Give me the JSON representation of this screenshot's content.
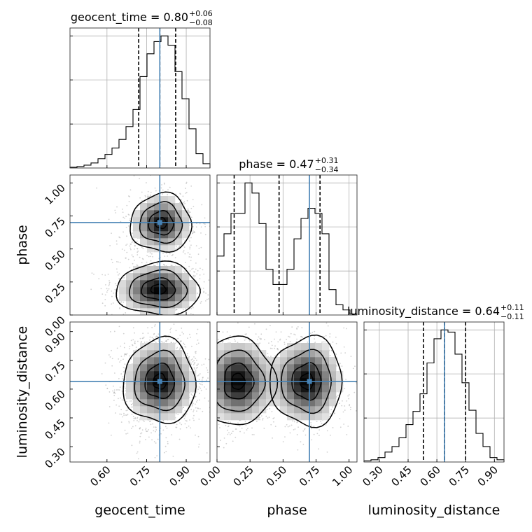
{
  "chart_data": {
    "type": "corner",
    "parameters": [
      {
        "name": "geocent_time",
        "title": {
          "prefix": "geocent_time = ",
          "median": "0.80",
          "plus": "+0.06",
          "minus": "−0.08"
        },
        "range": [
          0.46,
          0.99
        ],
        "median": 0.8,
        "q_low": 0.72,
        "q_high": 0.86,
        "truth": 0.8,
        "ticks": [
          0.6,
          0.75,
          0.9
        ],
        "tick_labels": [
          "0.60",
          "0.75",
          "0.90"
        ],
        "hist_bins": [
          0.46,
          0.4865,
          0.513,
          0.5395,
          0.566,
          0.5925,
          0.619,
          0.6455,
          0.672,
          0.6985,
          0.725,
          0.7515,
          0.778,
          0.8045,
          0.831,
          0.8575,
          0.884,
          0.9105,
          0.937,
          0.9635,
          0.99
        ],
        "hist_counts": [
          1,
          2,
          4,
          7,
          13,
          19,
          28,
          40,
          58,
          82,
          128,
          160,
          177,
          185,
          172,
          135,
          97,
          55,
          20,
          6
        ]
      },
      {
        "name": "phase",
        "title": {
          "prefix": "phase = ",
          "median": "0.47",
          "plus": "+0.31",
          "minus": "−0.34"
        },
        "range": [
          0.0,
          1.06
        ],
        "median": 0.47,
        "q_low": 0.13,
        "q_high": 0.78,
        "truth": 0.7,
        "ticks": [
          0.0,
          0.25,
          0.5,
          0.75,
          1.0
        ],
        "tick_labels": [
          "0.00",
          "0.25",
          "0.50",
          "0.75",
          "1.00"
        ],
        "hist_bins": [
          0.0,
          0.053,
          0.106,
          0.159,
          0.212,
          0.265,
          0.318,
          0.371,
          0.424,
          0.477,
          0.53,
          0.583,
          0.636,
          0.689,
          0.742,
          0.795,
          0.848,
          0.901,
          0.954,
          1.007,
          1.06
        ],
        "hist_counts": [
          58,
          80,
          100,
          100,
          130,
          120,
          90,
          45,
          30,
          30,
          45,
          75,
          95,
          105,
          100,
          80,
          25,
          10,
          5,
          1
        ]
      },
      {
        "name": "luminosity_distance",
        "title": {
          "prefix": "luminosity_distance = ",
          "median": "0.64",
          "plus": "+0.11",
          "minus": "−0.11"
        },
        "range": [
          0.22,
          0.95
        ],
        "median": 0.64,
        "q_low": 0.53,
        "q_high": 0.75,
        "truth": 0.64,
        "ticks": [
          0.3,
          0.45,
          0.6,
          0.75,
          0.9
        ],
        "tick_labels": [
          "0.30",
          "0.45",
          "0.60",
          "0.75",
          "0.90"
        ],
        "hist_bins": [
          0.22,
          0.2565,
          0.293,
          0.3295,
          0.366,
          0.4025,
          0.439,
          0.4755,
          0.512,
          0.5485,
          0.585,
          0.6215,
          0.658,
          0.6945,
          0.731,
          0.7675,
          0.804,
          0.8405,
          0.877,
          0.9135,
          0.95
        ],
        "hist_counts": [
          1,
          2,
          4,
          9,
          14,
          22,
          34,
          46,
          62,
          90,
          112,
          120,
          118,
          98,
          72,
          47,
          26,
          14,
          4,
          2
        ]
      }
    ],
    "pairs": [
      {
        "x": "geocent_time",
        "y": "phase",
        "modes": [
          {
            "center": [
              0.805,
              0.695
            ],
            "spread": [
              0.055,
              0.105
            ],
            "weight": 1.0
          },
          {
            "center": [
              0.795,
              0.195
            ],
            "spread": [
              0.075,
              0.095
            ],
            "weight": 1.05
          }
        ]
      },
      {
        "x": "geocent_time",
        "y": "luminosity_distance",
        "modes": [
          {
            "center": [
              0.8,
              0.64
            ],
            "spread": [
              0.065,
              0.105
            ],
            "weight": 1.0
          }
        ]
      },
      {
        "x": "phase",
        "y": "luminosity_distance",
        "modes": [
          {
            "center": [
              0.16,
              0.64
            ],
            "spread": [
              0.13,
              0.11
            ],
            "weight": 1.0
          },
          {
            "center": [
              0.68,
              0.64
            ],
            "spread": [
              0.13,
              0.11
            ],
            "weight": 1.0
          }
        ]
      }
    ],
    "truth_color": "#4682b4",
    "quantile_style": "dashed",
    "grid": true
  }
}
